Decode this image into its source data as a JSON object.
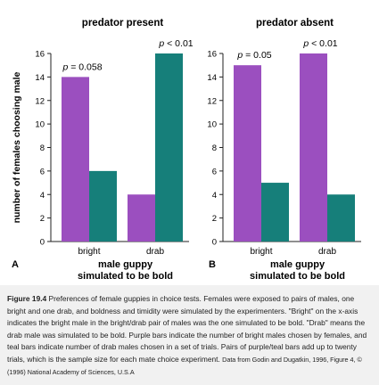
{
  "chart_data": [
    {
      "type": "bar",
      "panel": "A",
      "title": "predator present",
      "ylabel": "number of females choosing male",
      "xlabel_line1": "male guppy",
      "xlabel_line2": "simulated to be bold",
      "categories": [
        "bright",
        "drab"
      ],
      "series": [
        {
          "values": [
            14,
            4
          ],
          "color": "#9b4fbf"
        },
        {
          "values": [
            6,
            16
          ],
          "color": "#167f7a"
        }
      ],
      "annotations": [
        "p = 0.058",
        "p < 0.01"
      ],
      "ylim": [
        0,
        16
      ],
      "yticks": [
        0,
        2,
        4,
        6,
        8,
        10,
        12,
        14,
        16
      ]
    },
    {
      "type": "bar",
      "panel": "B",
      "title": "predator absent",
      "xlabel_line1": "male guppy",
      "xlabel_line2": "simulated to be bold",
      "categories": [
        "bright",
        "drab"
      ],
      "series": [
        {
          "values": [
            15,
            16
          ],
          "color": "#9b4fbf"
        },
        {
          "values": [
            5,
            4
          ],
          "color": "#167f7a"
        }
      ],
      "annotations": [
        "p = 0.05",
        "p < 0.01"
      ],
      "ylim": [
        0,
        16
      ],
      "yticks": [
        0,
        2,
        4,
        6,
        8,
        10,
        12,
        14,
        16
      ]
    }
  ],
  "caption": {
    "label": "Figure 19.4",
    "text": "Preferences of female guppies in choice tests. Females were exposed to pairs of males, one bright and one drab, and boldness and timidity were simulated by the experimenters. \"Bright\" on the x-axis indicates the bright male in the bright/drab pair of males was the one simulated to be bold. \"Drab\" means the drab male was simulated to be bold. Purple bars indicate the number of bright males chosen by females, and teal bars indicate number of drab males chosen in a set of trials. Pairs of purple/teal bars add up to twenty trials, which is the sample size for each mate choice experiment.",
    "credit": "Data from Godin and Dugatkin, 1996, Figure 4, © (1996) National Academy of Sciences, U.S.A"
  }
}
